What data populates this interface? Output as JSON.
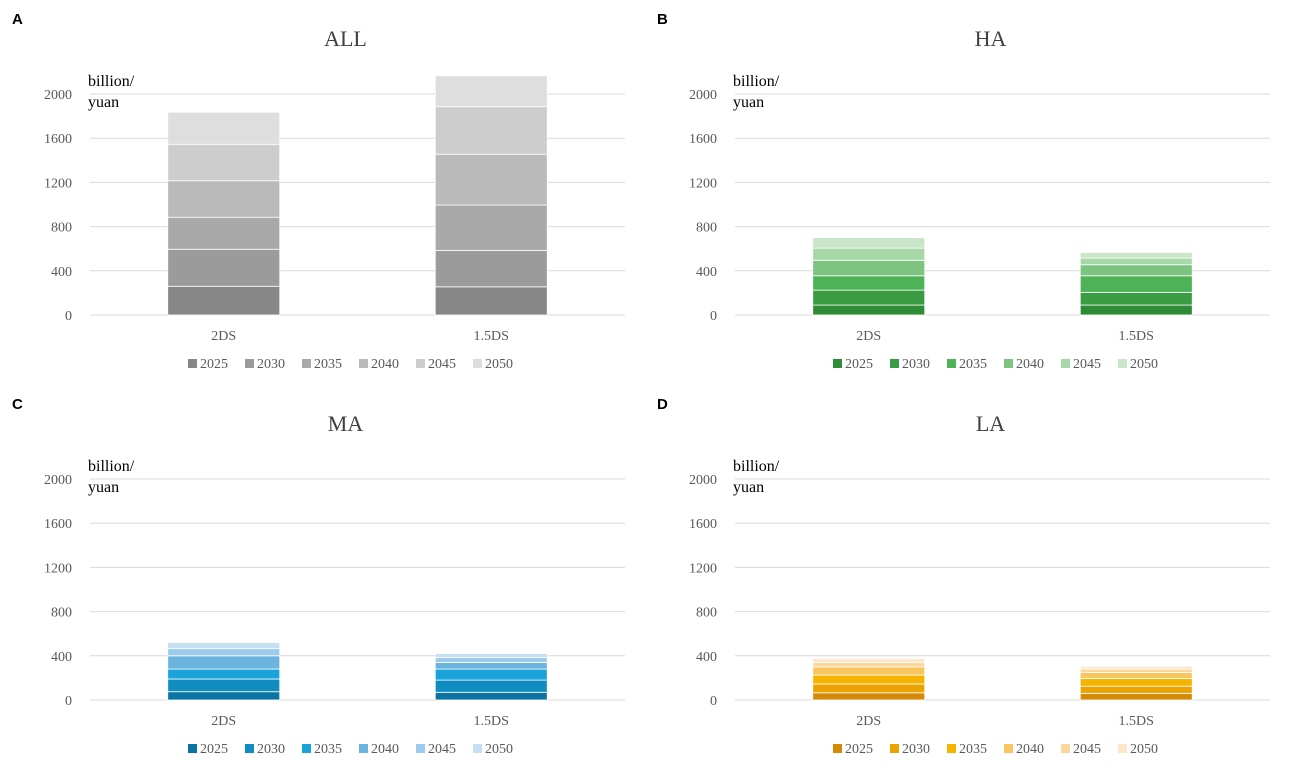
{
  "chart_data": [
    {
      "panel_label": "A",
      "type": "bar",
      "stacked": true,
      "title": "ALL",
      "unit_label": [
        "billion/",
        "yuan"
      ],
      "categories": [
        "2DS",
        "1.5DS"
      ],
      "ylim": [
        0,
        2000
      ],
      "yticks": [
        0,
        400,
        800,
        1200,
        1600,
        2000
      ],
      "grid": true,
      "legend_position": "bottom",
      "series": [
        {
          "name": "2025",
          "color": "#878787",
          "values": [
            260,
            255
          ]
        },
        {
          "name": "2030",
          "color": "#9b9b9b",
          "values": [
            335,
            330
          ]
        },
        {
          "name": "2035",
          "color": "#a9a9a9",
          "values": [
            290,
            410
          ]
        },
        {
          "name": "2040",
          "color": "#bababa",
          "values": [
            330,
            460
          ]
        },
        {
          "name": "2045",
          "color": "#cdcdcd",
          "values": [
            330,
            430
          ]
        },
        {
          "name": "2050",
          "color": "#dedede",
          "values": [
            290,
            280
          ]
        }
      ]
    },
    {
      "panel_label": "B",
      "type": "bar",
      "stacked": true,
      "title": "HA",
      "unit_label": [
        "billion/",
        "yuan"
      ],
      "categories": [
        "2DS",
        "1.5DS"
      ],
      "ylim": [
        0,
        2000
      ],
      "yticks": [
        0,
        400,
        800,
        1200,
        1600,
        2000
      ],
      "grid": true,
      "legend_position": "bottom",
      "series": [
        {
          "name": "2025",
          "color": "#2e8b36",
          "values": [
            90,
            90
          ]
        },
        {
          "name": "2030",
          "color": "#3a9c42",
          "values": [
            135,
            115
          ]
        },
        {
          "name": "2035",
          "color": "#4eb356",
          "values": [
            130,
            150
          ]
        },
        {
          "name": "2040",
          "color": "#7cc47f",
          "values": [
            140,
            100
          ]
        },
        {
          "name": "2045",
          "color": "#a8d8a8",
          "values": [
            110,
            60
          ]
        },
        {
          "name": "2050",
          "color": "#c9e6c9",
          "values": [
            95,
            50
          ]
        }
      ]
    },
    {
      "panel_label": "C",
      "type": "bar",
      "stacked": true,
      "title": "MA",
      "unit_label": [
        "billion/",
        "yuan"
      ],
      "categories": [
        "2DS",
        "1.5DS"
      ],
      "ylim": [
        0,
        2000
      ],
      "yticks": [
        0,
        400,
        800,
        1200,
        1600,
        2000
      ],
      "grid": true,
      "legend_position": "bottom",
      "series": [
        {
          "name": "2025",
          "color": "#0b74a3",
          "values": [
            75,
            70
          ]
        },
        {
          "name": "2030",
          "color": "#0f8cc0",
          "values": [
            115,
            110
          ]
        },
        {
          "name": "2035",
          "color": "#1aa3d8",
          "values": [
            90,
            100
          ]
        },
        {
          "name": "2040",
          "color": "#6cb4e0",
          "values": [
            120,
            60
          ]
        },
        {
          "name": "2045",
          "color": "#9dcbed",
          "values": [
            65,
            45
          ]
        },
        {
          "name": "2050",
          "color": "#c5dff3",
          "values": [
            55,
            35
          ]
        }
      ]
    },
    {
      "panel_label": "D",
      "type": "bar",
      "stacked": true,
      "title": "LA",
      "unit_label": [
        "billion/",
        "yuan"
      ],
      "categories": [
        "2DS",
        "1.5DS"
      ],
      "ylim": [
        0,
        2000
      ],
      "yticks": [
        0,
        400,
        800,
        1200,
        1600,
        2000
      ],
      "grid": true,
      "legend_position": "bottom",
      "series": [
        {
          "name": "2025",
          "color": "#d48a06",
          "values": [
            65,
            60
          ]
        },
        {
          "name": "2030",
          "color": "#eca200",
          "values": [
            80,
            65
          ]
        },
        {
          "name": "2035",
          "color": "#f5b400",
          "values": [
            80,
            70
          ]
        },
        {
          "name": "2040",
          "color": "#f9c55e",
          "values": [
            75,
            55
          ]
        },
        {
          "name": "2045",
          "color": "#fbd89a",
          "values": [
            40,
            30
          ]
        },
        {
          "name": "2050",
          "color": "#fde7c8",
          "values": [
            35,
            25
          ]
        }
      ]
    }
  ]
}
